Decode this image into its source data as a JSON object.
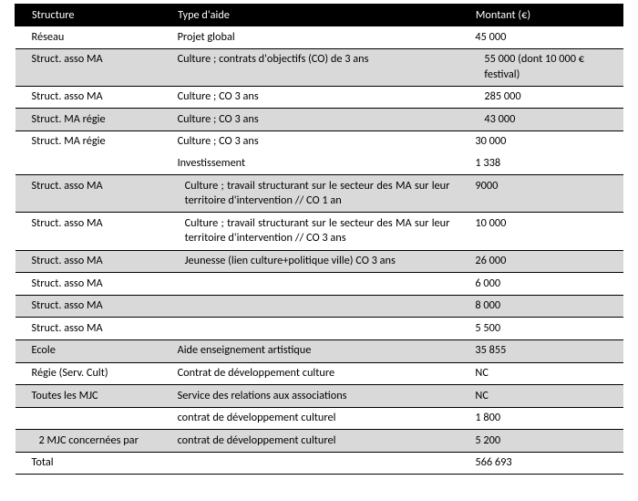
{
  "table": {
    "headers": {
      "structure": "Structure",
      "type": "Type d'aide",
      "montant": "Montant (€)"
    },
    "rows": [
      {
        "shade": false,
        "structure": "Réseau",
        "type": "Projet global",
        "montant": "45 000"
      },
      {
        "shade": true,
        "structure": "Struct. asso MA",
        "type": "Culture ; contrats d'objectifs (CO) de 3 ans",
        "montant": "55 000 (dont 10 000 € festival)",
        "montant_indent": true
      },
      {
        "shade": false,
        "structure": "Struct. asso MA",
        "type": "Culture ; CO 3 ans",
        "montant": "285 000",
        "montant_indent": true
      },
      {
        "shade": true,
        "structure": "Struct. MA régie",
        "type": "Culture ; CO 3 ans",
        "montant": "43 000",
        "montant_indent": true
      },
      {
        "shade": false,
        "structure": "Struct. MA régie",
        "type": "Culture ; CO 3 ans",
        "montant": "30 000",
        "no_bottom_border": true
      },
      {
        "shade": false,
        "structure": "",
        "type": "Investissement",
        "montant": "1 338"
      },
      {
        "shade": true,
        "structure": "Struct. asso MA",
        "type": "Culture ; travail structurant sur le secteur des MA sur leur territoire d'intervention // CO 1 an",
        "montant": "9000",
        "justify": true
      },
      {
        "shade": false,
        "structure": "Struct. asso MA",
        "type": "Culture ; travail structurant sur le secteur des MA sur leur territoire d'intervention // CO 3 ans",
        "montant": "10 000",
        "justify": true
      },
      {
        "shade": true,
        "structure": "Struct. asso MA",
        "type": "Jeunesse (lien culture+politique ville) CO 3 ans",
        "montant": "26 000",
        "justify": true
      },
      {
        "shade": false,
        "structure": "Struct. asso MA",
        "type": "",
        "montant": "6 000"
      },
      {
        "shade": true,
        "structure": "Struct. asso MA",
        "type": "",
        "montant": "8 000"
      },
      {
        "shade": false,
        "structure": "Struct. asso MA",
        "type": "",
        "montant": "5 500"
      },
      {
        "shade": true,
        "structure": "Ecole",
        "type": "Aide enseignement artistique",
        "montant": "35 855"
      },
      {
        "shade": false,
        "structure": "Régie (Serv. Cult)",
        "type": "Contrat de développement culture",
        "montant": "NC"
      },
      {
        "shade": true,
        "structure": "Toutes les MJC",
        "type": "Service des relations aux associations",
        "montant": "NC"
      },
      {
        "shade": false,
        "structure": "",
        "type": "contrat de développement culturel",
        "montant": "1 800"
      },
      {
        "shade": true,
        "structure": "2 MJC concernées par",
        "type": "contrat de développement culturel",
        "montant": "5 200",
        "struct_justify": true
      },
      {
        "shade": false,
        "structure": "Total",
        "type": "",
        "montant": "566 693"
      }
    ]
  },
  "style": {
    "font_family": "Calibri",
    "font_size_pt": 12.3,
    "header_bg": "#000000",
    "header_fg": "#ffffff",
    "shade_bg": "#d9d9d9",
    "border_color": "#000000",
    "page_bg": "#ffffff",
    "col_widths_pct": [
      24,
      49,
      27
    ]
  }
}
